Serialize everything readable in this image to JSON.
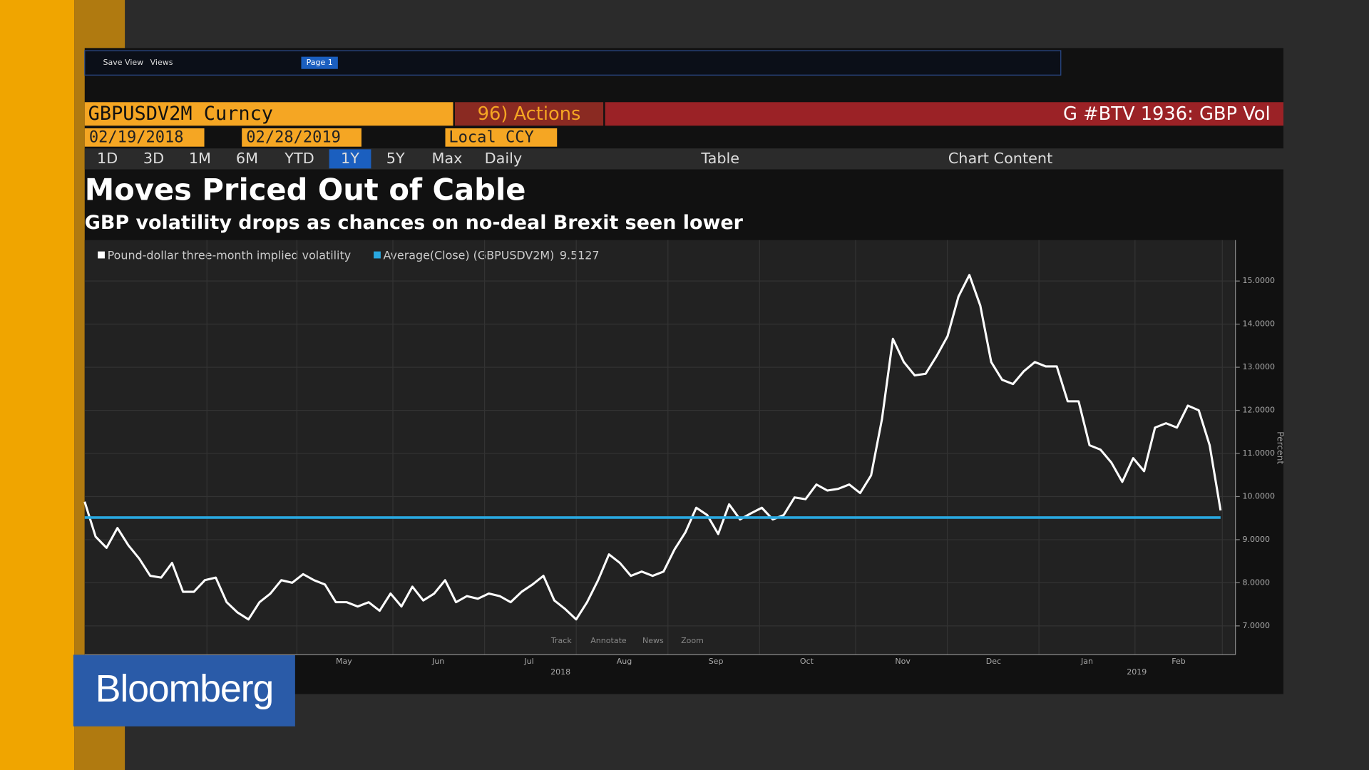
{
  "toolbar": {
    "save": "Save View",
    "views": "Views",
    "page": "Page 1"
  },
  "header": {
    "ticker": "GBPUSDV2M Curncy",
    "actions": "96) Actions",
    "title_right": "G #BTV 1936: GBP Vol"
  },
  "dates": {
    "start": "02/19/2018",
    "end": "02/28/2019",
    "currency": "Local CCY"
  },
  "periods": [
    "1D",
    "3D",
    "1M",
    "6M",
    "YTD",
    "1Y",
    "5Y",
    "Max"
  ],
  "selected_period": "1Y",
  "frequency": "Daily",
  "table": "Table",
  "chart_content": "Chart Content",
  "chart_data": {
    "type": "line",
    "title": "Moves Priced Out of Cable",
    "subtitle": "GBP volatility drops as chances on no-deal Brexit seen lower",
    "series": [
      {
        "name": "Pound-dollar three-month implied volatility",
        "color": "#ffffff",
        "values": [
          9.88,
          9.07,
          8.81,
          9.27,
          8.87,
          8.56,
          8.16,
          8.12,
          8.46,
          7.79,
          7.79,
          8.06,
          8.12,
          7.55,
          7.31,
          7.15,
          7.55,
          7.75,
          8.06,
          8.0,
          8.2,
          8.06,
          7.96,
          7.55,
          7.55,
          7.45,
          7.55,
          7.35,
          7.75,
          7.45,
          7.91,
          7.59,
          7.75,
          8.06,
          7.55,
          7.69,
          7.63,
          7.75,
          7.69,
          7.55,
          7.79,
          7.96,
          8.16,
          7.59,
          7.39,
          7.15,
          7.55,
          8.06,
          8.66,
          8.46,
          8.16,
          8.26,
          8.16,
          8.26,
          8.77,
          9.17,
          9.74,
          9.57,
          9.13,
          9.82,
          9.47,
          9.61,
          9.74,
          9.47,
          9.57,
          9.98,
          9.94,
          10.28,
          10.14,
          10.18,
          10.28,
          10.08,
          10.49,
          11.8,
          13.66,
          13.12,
          12.81,
          12.85,
          13.26,
          13.72,
          14.64,
          15.14,
          14.43,
          13.12,
          12.71,
          12.61,
          12.91,
          13.12,
          13.02,
          13.02,
          12.21,
          12.21,
          11.19,
          11.09,
          10.79,
          10.34,
          10.89,
          10.59,
          11.6,
          11.7,
          11.6,
          12.11,
          12.0,
          11.19,
          9.68
        ]
      }
    ],
    "average": {
      "name": "Average(Close) (GBPUSDV2M)",
      "value": 9.5127,
      "color": "#29a8e0"
    },
    "months": [
      "May",
      "Jun",
      "Jul",
      "Aug",
      "Sep",
      "Oct",
      "Nov",
      "Dec",
      "Jan",
      "Feb"
    ],
    "years": [
      "2018",
      "2019"
    ],
    "ylabel": "Percent",
    "ylim": [
      6.33,
      15.95
    ],
    "yticks": [
      {
        "value": 7,
        "label": "7.0000"
      },
      {
        "value": 8,
        "label": "8.0000"
      },
      {
        "value": 9,
        "label": "9.0000"
      },
      {
        "value": 10,
        "label": "10.0000"
      },
      {
        "value": 11,
        "label": "11.0000"
      },
      {
        "value": 12,
        "label": "12.0000"
      },
      {
        "value": 13,
        "label": "13.0000"
      },
      {
        "value": 14,
        "label": "14.0000"
      },
      {
        "value": 15,
        "label": "15.0000"
      }
    ],
    "grid": true
  },
  "tools": [
    "Track",
    "Annotate",
    "News",
    "Zoom"
  ],
  "logo": "Bloomberg"
}
